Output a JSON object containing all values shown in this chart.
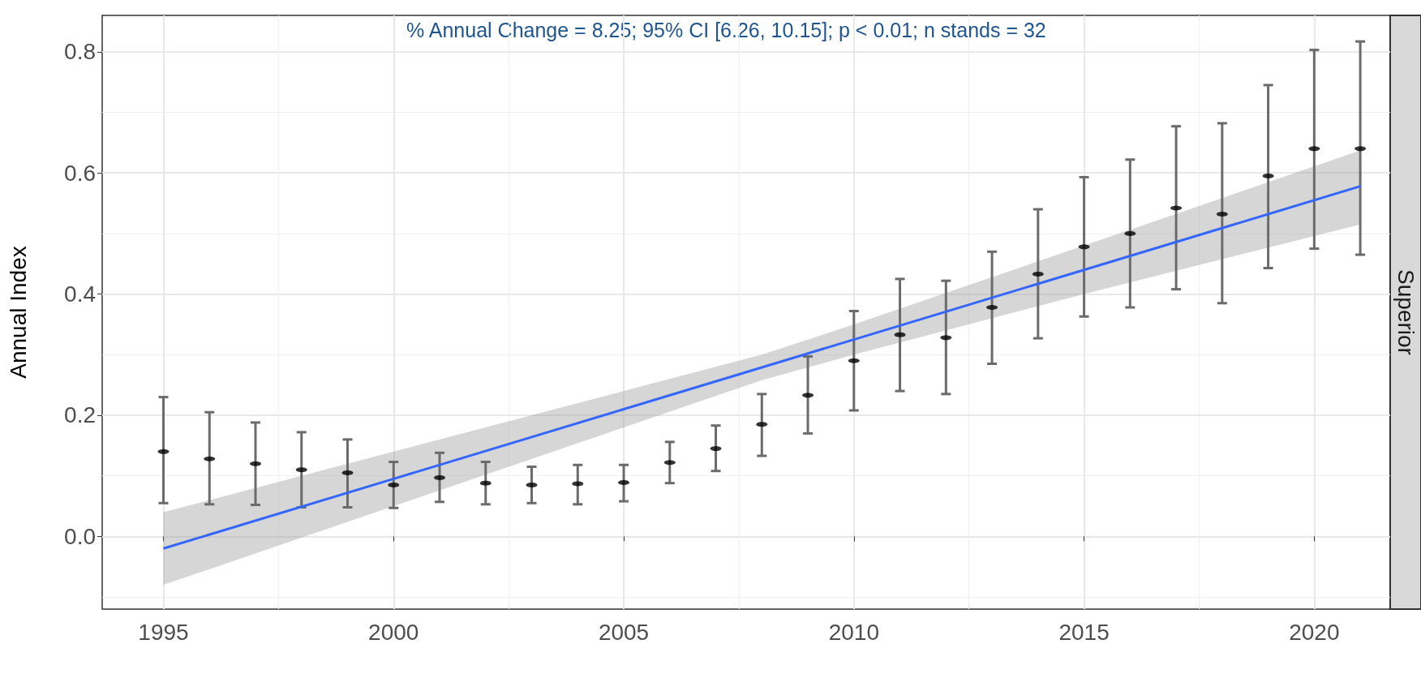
{
  "chart_data": {
    "type": "scatter",
    "ylabel": "Annual Index",
    "annotations": [
      "% Annual Change = 8.25; 95% CI [6.26, 10.15]; p < 0.01; n stands = 32",
      "Superior"
    ],
    "xlim": [
      1993.67,
      2021.65
    ],
    "xticks": [
      1995,
      2000,
      2005,
      2010,
      2015,
      2020
    ],
    "ylim": [
      -0.12,
      0.86
    ],
    "yticks": [
      {
        "value": 0,
        "label": "0.0"
      },
      0.2,
      0.4,
      0.6,
      0.8
    ],
    "grid": true,
    "series": [
      {
        "color": "#000000",
        "marker": "circle",
        "x": [
          1995,
          1996,
          1997,
          1998,
          1999,
          2000,
          2001,
          2002,
          2003,
          2004,
          2005,
          2006,
          2007,
          2008,
          2009,
          2010,
          2011,
          2012,
          2013,
          2014,
          2015,
          2016,
          2017,
          2018,
          2019,
          2020,
          2021
        ],
        "values": [
          0.14,
          0.128,
          0.12,
          0.11,
          0.105,
          0.085,
          0.097,
          0.088,
          0.085,
          0.087,
          0.089,
          0.122,
          0.145,
          0.185,
          0.233,
          0.29,
          0.333,
          0.328,
          0.378,
          0.433,
          0.478,
          0.5,
          0.542,
          0.532,
          0.595,
          0.64,
          0.64
        ],
        "errors": [
          [
            0.055,
            0.23
          ],
          [
            0.053,
            0.205
          ],
          [
            0.052,
            0.188
          ],
          [
            0.048,
            0.172
          ],
          [
            0.048,
            0.16
          ],
          [
            0.047,
            0.123
          ],
          [
            0.057,
            0.138
          ],
          [
            0.053,
            0.123
          ],
          [
            0.055,
            0.115
          ],
          [
            0.053,
            0.118
          ],
          [
            0.058,
            0.118
          ],
          [
            0.088,
            0.156
          ],
          [
            0.108,
            0.183
          ],
          [
            0.133,
            0.235
          ],
          [
            0.17,
            0.297
          ],
          [
            0.208,
            0.372
          ],
          [
            0.24,
            0.425
          ],
          [
            0.235,
            0.422
          ],
          [
            0.285,
            0.47
          ],
          [
            0.327,
            0.54
          ],
          [
            0.363,
            0.593
          ],
          [
            0.378,
            0.622
          ],
          [
            0.408,
            0.677
          ],
          [
            0.385,
            0.682
          ],
          [
            0.443,
            0.745
          ],
          [
            0.475,
            0.803
          ],
          [
            0.465,
            0.817
          ]
        ]
      },
      {
        "type": "line",
        "color": "#3366ff",
        "x": [
          1995,
          2000,
          2005,
          2008,
          2010,
          2015,
          2021
        ],
        "values": [
          -0.02,
          0.095,
          0.21,
          0.279,
          0.325,
          0.44,
          0.578
        ],
        "lower": [
          -0.08,
          0.05,
          0.18,
          0.258,
          0.3,
          0.4,
          0.515
        ],
        "upper": [
          0.04,
          0.14,
          0.24,
          0.3,
          0.35,
          0.48,
          0.637
        ]
      }
    ]
  }
}
